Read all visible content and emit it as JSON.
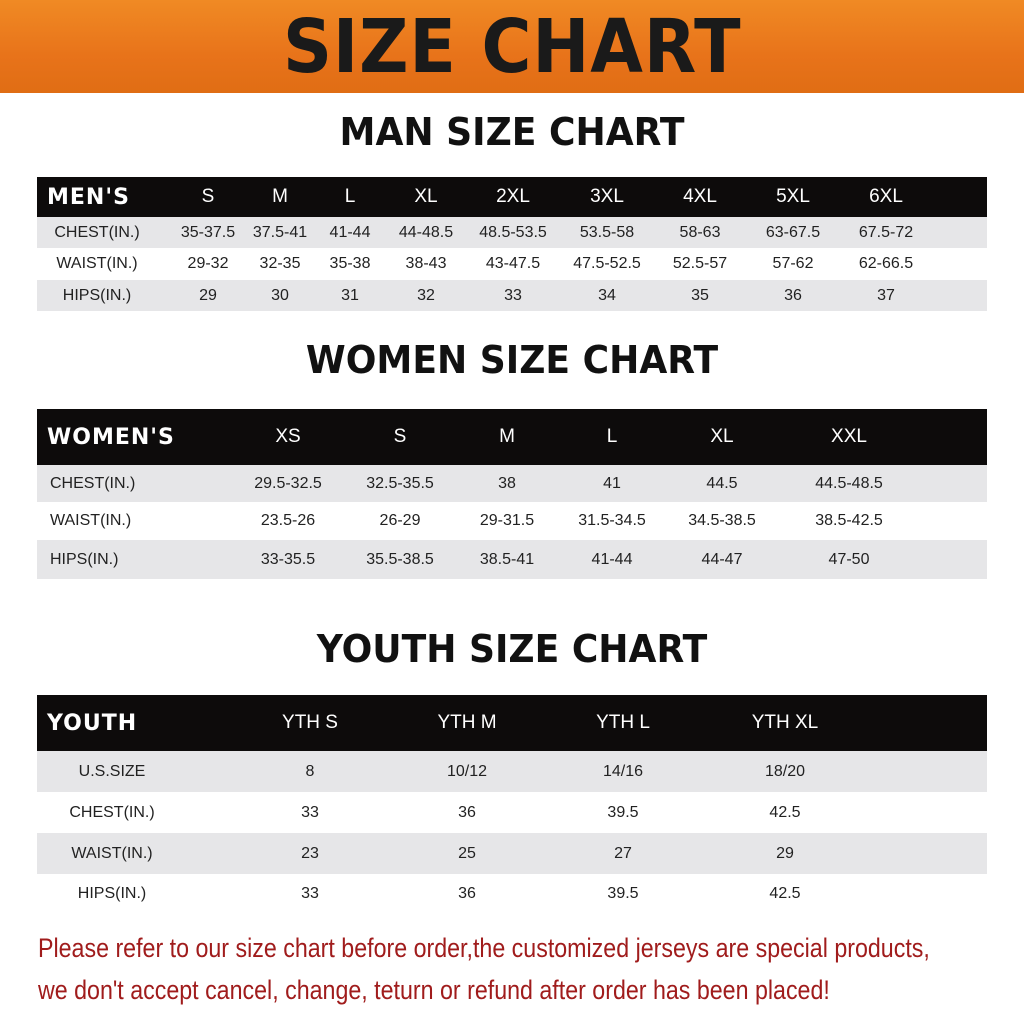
{
  "banner": {
    "title": "SIZE CHART",
    "color": "#e8761a"
  },
  "men": {
    "title": "MAN SIZE CHART",
    "header": [
      "MEN'S",
      "S",
      "M",
      "L",
      "XL",
      "2XL",
      "3XL",
      "4XL",
      "5XL",
      "6XL"
    ],
    "rows": [
      [
        "CHEST(IN.)",
        "35-37.5",
        "37.5-41",
        "41-44",
        "44-48.5",
        "48.5-53.5",
        "53.5-58",
        "58-63",
        "63-67.5",
        "67.5-72"
      ],
      [
        "WAIST(IN.)",
        "29-32",
        "32-35",
        "35-38",
        "38-43",
        "43-47.5",
        "47.5-52.5",
        "52.5-57",
        "57-62",
        "62-66.5"
      ],
      [
        "HIPS(IN.)",
        "29",
        "30",
        "31",
        "32",
        "33",
        "34",
        "35",
        "36",
        "37"
      ]
    ]
  },
  "women": {
    "title": "WOMEN SIZE CHART",
    "header": [
      "WOMEN'S",
      "XS",
      "S",
      "M",
      "L",
      "XL",
      "XXL"
    ],
    "rows": [
      [
        "CHEST(IN.)",
        "29.5-32.5",
        "32.5-35.5",
        "38",
        "41",
        "44.5",
        "44.5-48.5"
      ],
      [
        "WAIST(IN.)",
        "23.5-26",
        "26-29",
        "29-31.5",
        "31.5-34.5",
        "34.5-38.5",
        "38.5-42.5"
      ],
      [
        "HIPS(IN.)",
        "33-35.5",
        "35.5-38.5",
        "38.5-41",
        "41-44",
        "44-47",
        "47-50"
      ]
    ]
  },
  "youth": {
    "title": "YOUTH SIZE CHART",
    "header": [
      "YOUTH",
      "YTH S",
      "YTH M",
      "YTH L",
      "YTH XL"
    ],
    "rows": [
      [
        "U.S.SIZE",
        "8",
        "10/12",
        "14/16",
        "18/20"
      ],
      [
        "CHEST(IN.)",
        "33",
        "36",
        "39.5",
        "42.5"
      ],
      [
        "WAIST(IN.)",
        "23",
        "25",
        "27",
        "29"
      ],
      [
        "HIPS(IN.)",
        "33",
        "36",
        "39.5",
        "42.5"
      ]
    ]
  },
  "notice": {
    "line1": "Please refer to our size chart before order,the customized jerseys are special products,",
    "line2": "we don't accept cancel, change, teturn or refund after order has been placed!",
    "color": "#a01c1c"
  }
}
